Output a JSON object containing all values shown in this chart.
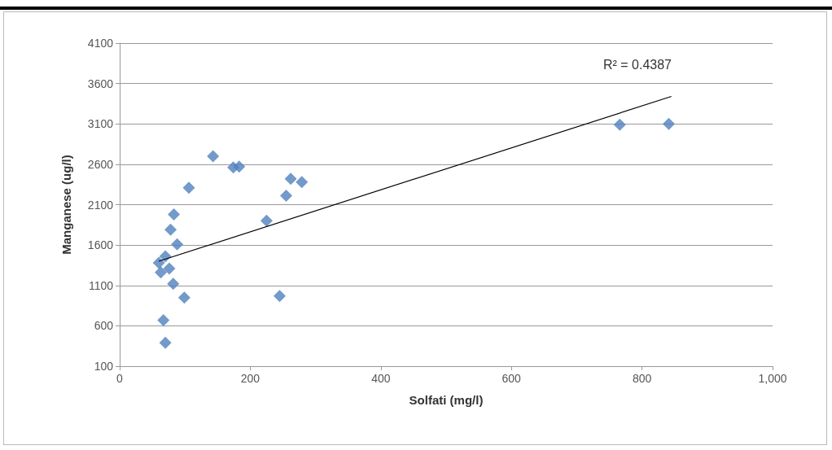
{
  "chart_data": {
    "type": "scatter",
    "xlabel": "Solfati (mg/l)",
    "ylabel": "Manganese (ug/l)",
    "xlim": [
      0,
      1000
    ],
    "xticks": [
      0,
      200,
      400,
      600,
      800,
      {
        "value": 1000,
        "label": "1,000"
      }
    ],
    "ylim": [
      100,
      4100
    ],
    "yticks": [
      100,
      600,
      1100,
      1600,
      2100,
      2600,
      3100,
      3600,
      4100
    ],
    "grid": "y",
    "marker": "diamond",
    "annotations": [
      "R² = 0.4387"
    ],
    "series": [
      {
        "color": "#4f81bd",
        "x": [
          143,
          174,
          183,
          106,
          262,
          279,
          255,
          83,
          78,
          225,
          88,
          70,
          60,
          76,
          63,
          82,
          99,
          245,
          67,
          70,
          766,
          841
        ],
        "values": [
          2700,
          2560,
          2570,
          2310,
          2420,
          2380,
          2210,
          1980,
          1790,
          1900,
          1610,
          1460,
          1380,
          1310,
          1260,
          1120,
          950,
          970,
          670,
          390,
          3090,
          3100
        ]
      },
      {
        "type": "line",
        "color": "#000000",
        "marker": "none",
        "x": [
          60,
          845
        ],
        "values": [
          1400,
          3440
        ]
      }
    ]
  }
}
